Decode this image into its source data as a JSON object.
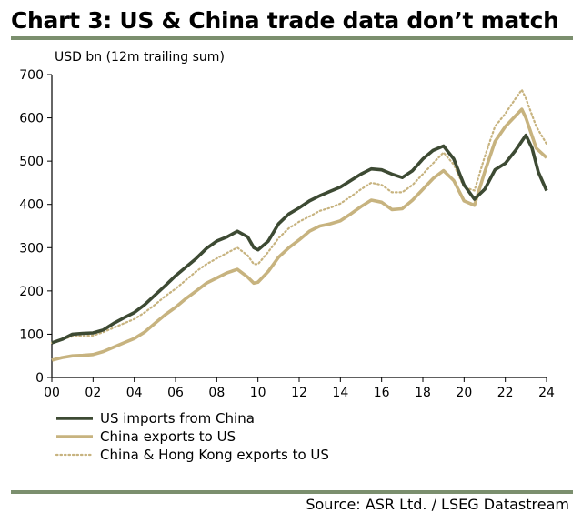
{
  "title": "Chart 3: US & China trade data don’t match",
  "source": "Source: ASR Ltd. / LSEG Datastream",
  "colors": {
    "rule": "#7b8f6e",
    "us_imports": "#3d4a33",
    "china_exports": "#c7b37f",
    "china_hk_exports": "#c7b37f"
  },
  "chart_data": {
    "type": "line",
    "ylabel": "USD bn (12m trailing sum)",
    "xlim": [
      2000,
      2024
    ],
    "ylim": [
      0,
      700
    ],
    "yticks": [
      0,
      100,
      200,
      300,
      400,
      500,
      600,
      700
    ],
    "xticks": [
      {
        "value": 2000,
        "label": "00"
      },
      {
        "value": 2002,
        "label": "02"
      },
      {
        "value": 2004,
        "label": "04"
      },
      {
        "value": 2006,
        "label": "06"
      },
      {
        "value": 2008,
        "label": "08"
      },
      {
        "value": 2010,
        "label": "10"
      },
      {
        "value": 2012,
        "label": "12"
      },
      {
        "value": 2014,
        "label": "14"
      },
      {
        "value": 2016,
        "label": "16"
      },
      {
        "value": 2018,
        "label": "18"
      },
      {
        "value": 2020,
        "label": "20"
      },
      {
        "value": 2022,
        "label": "22"
      },
      {
        "value": 2024,
        "label": "24"
      }
    ],
    "grid": false,
    "legend": "bottom-left",
    "series": [
      {
        "name": "US imports from China",
        "style": "solid-dark",
        "points": [
          [
            2000,
            80
          ],
          [
            2000.5,
            88
          ],
          [
            2001,
            100
          ],
          [
            2001.5,
            102
          ],
          [
            2002,
            103
          ],
          [
            2002.5,
            110
          ],
          [
            2003,
            125
          ],
          [
            2003.5,
            138
          ],
          [
            2004,
            150
          ],
          [
            2004.5,
            168
          ],
          [
            2005,
            190
          ],
          [
            2005.5,
            212
          ],
          [
            2006,
            235
          ],
          [
            2006.5,
            255
          ],
          [
            2007,
            275
          ],
          [
            2007.5,
            298
          ],
          [
            2008,
            315
          ],
          [
            2008.5,
            325
          ],
          [
            2009,
            338
          ],
          [
            2009.5,
            325
          ],
          [
            2009.8,
            300
          ],
          [
            2010,
            295
          ],
          [
            2010.5,
            315
          ],
          [
            2011,
            355
          ],
          [
            2011.5,
            378
          ],
          [
            2012,
            392
          ],
          [
            2012.5,
            408
          ],
          [
            2013,
            420
          ],
          [
            2013.5,
            430
          ],
          [
            2014,
            440
          ],
          [
            2014.5,
            455
          ],
          [
            2015,
            470
          ],
          [
            2015.5,
            482
          ],
          [
            2016,
            480
          ],
          [
            2016.5,
            470
          ],
          [
            2017,
            462
          ],
          [
            2017.5,
            478
          ],
          [
            2018,
            505
          ],
          [
            2018.5,
            525
          ],
          [
            2019,
            535
          ],
          [
            2019.5,
            505
          ],
          [
            2020,
            445
          ],
          [
            2020.5,
            412
          ],
          [
            2021,
            435
          ],
          [
            2021.5,
            480
          ],
          [
            2022,
            495
          ],
          [
            2022.5,
            525
          ],
          [
            2023,
            560
          ],
          [
            2023.3,
            530
          ],
          [
            2023.6,
            475
          ],
          [
            2024,
            432
          ]
        ]
      },
      {
        "name": "China exports to US",
        "style": "solid-light",
        "points": [
          [
            2000,
            40
          ],
          [
            2000.5,
            46
          ],
          [
            2001,
            50
          ],
          [
            2001.5,
            51
          ],
          [
            2002,
            53
          ],
          [
            2002.5,
            60
          ],
          [
            2003,
            70
          ],
          [
            2003.5,
            80
          ],
          [
            2004,
            90
          ],
          [
            2004.5,
            105
          ],
          [
            2005,
            125
          ],
          [
            2005.5,
            145
          ],
          [
            2006,
            162
          ],
          [
            2006.5,
            182
          ],
          [
            2007,
            200
          ],
          [
            2007.5,
            218
          ],
          [
            2008,
            230
          ],
          [
            2008.5,
            242
          ],
          [
            2009,
            250
          ],
          [
            2009.5,
            232
          ],
          [
            2009.8,
            218
          ],
          [
            2010,
            220
          ],
          [
            2010.5,
            245
          ],
          [
            2011,
            278
          ],
          [
            2011.5,
            300
          ],
          [
            2012,
            318
          ],
          [
            2012.5,
            338
          ],
          [
            2013,
            350
          ],
          [
            2013.5,
            355
          ],
          [
            2014,
            362
          ],
          [
            2014.5,
            378
          ],
          [
            2015,
            395
          ],
          [
            2015.5,
            410
          ],
          [
            2016,
            405
          ],
          [
            2016.5,
            388
          ],
          [
            2017,
            390
          ],
          [
            2017.5,
            410
          ],
          [
            2018,
            435
          ],
          [
            2018.5,
            460
          ],
          [
            2019,
            478
          ],
          [
            2019.5,
            455
          ],
          [
            2020,
            408
          ],
          [
            2020.5,
            398
          ],
          [
            2021,
            475
          ],
          [
            2021.5,
            545
          ],
          [
            2022,
            580
          ],
          [
            2022.5,
            605
          ],
          [
            2022.8,
            620
          ],
          [
            2023,
            600
          ],
          [
            2023.5,
            530
          ],
          [
            2024,
            508
          ]
        ]
      },
      {
        "name": "China & Hong Kong exports to US",
        "style": "dotted-light",
        "points": [
          [
            2000,
            80
          ],
          [
            2000.5,
            88
          ],
          [
            2001,
            95
          ],
          [
            2001.5,
            96
          ],
          [
            2002,
            97
          ],
          [
            2002.5,
            105
          ],
          [
            2003,
            115
          ],
          [
            2003.5,
            125
          ],
          [
            2004,
            135
          ],
          [
            2004.5,
            150
          ],
          [
            2005,
            168
          ],
          [
            2005.5,
            188
          ],
          [
            2006,
            205
          ],
          [
            2006.5,
            225
          ],
          [
            2007,
            245
          ],
          [
            2007.5,
            262
          ],
          [
            2008,
            275
          ],
          [
            2008.5,
            288
          ],
          [
            2009,
            300
          ],
          [
            2009.5,
            282
          ],
          [
            2009.8,
            262
          ],
          [
            2010,
            262
          ],
          [
            2010.5,
            290
          ],
          [
            2011,
            322
          ],
          [
            2011.5,
            345
          ],
          [
            2012,
            360
          ],
          [
            2012.5,
            372
          ],
          [
            2013,
            385
          ],
          [
            2013.5,
            392
          ],
          [
            2014,
            402
          ],
          [
            2014.5,
            418
          ],
          [
            2015,
            435
          ],
          [
            2015.5,
            450
          ],
          [
            2016,
            445
          ],
          [
            2016.5,
            428
          ],
          [
            2017,
            428
          ],
          [
            2017.5,
            445
          ],
          [
            2018,
            470
          ],
          [
            2018.5,
            495
          ],
          [
            2019,
            520
          ],
          [
            2019.5,
            492
          ],
          [
            2020,
            440
          ],
          [
            2020.5,
            432
          ],
          [
            2021,
            510
          ],
          [
            2021.5,
            580
          ],
          [
            2022,
            610
          ],
          [
            2022.5,
            645
          ],
          [
            2022.8,
            665
          ],
          [
            2023,
            645
          ],
          [
            2023.5,
            580
          ],
          [
            2024,
            540
          ]
        ]
      }
    ]
  }
}
